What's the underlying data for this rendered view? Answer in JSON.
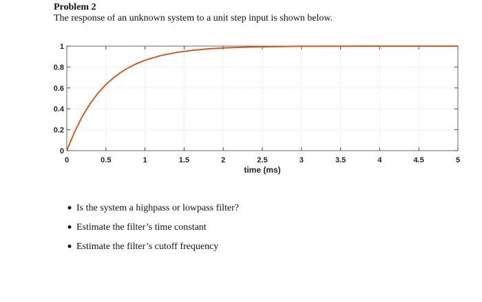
{
  "problem": {
    "title": "Problem 2",
    "statement": "The response of an unknown system to a unit step input is shown below."
  },
  "chart_data": {
    "type": "line",
    "xlabel": "time (ms)",
    "x": [
      0,
      0.1,
      0.2,
      0.3,
      0.4,
      0.5,
      0.6,
      0.7,
      0.8,
      0.9,
      1.0,
      1.2,
      1.4,
      1.6,
      1.8,
      2.0,
      2.2,
      2.4,
      2.6,
      2.8,
      3.0,
      3.2,
      3.4,
      3.6,
      3.8,
      4.0,
      4.5,
      5.0
    ],
    "series": [
      {
        "color": "#d4591e",
        "values": [
          0,
          0.181,
          0.33,
          0.451,
          0.551,
          0.632,
          0.699,
          0.753,
          0.798,
          0.835,
          0.865,
          0.909,
          0.939,
          0.959,
          0.973,
          0.982,
          0.988,
          0.992,
          0.994,
          0.996,
          0.998,
          0.998,
          0.999,
          0.999,
          1.0,
          1.0,
          1.0,
          1.0
        ]
      }
    ],
    "xlim": [
      0,
      5
    ],
    "xticks": [
      0,
      0.5,
      1,
      1.5,
      2,
      2.5,
      3,
      3.5,
      4,
      4.5,
      5
    ],
    "ylim": [
      0,
      1
    ],
    "yticks": [
      0,
      0.2,
      0.4,
      0.6,
      0.8,
      1
    ],
    "grid": true
  },
  "bullets": [
    "Is the system a highpass or lowpass filter?",
    "Estimate the filter’s time constant",
    "Estimate the filter’s cutoff frequency"
  ]
}
